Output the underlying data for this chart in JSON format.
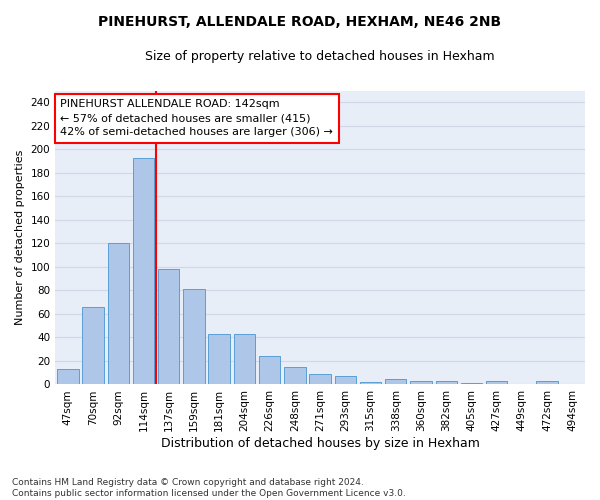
{
  "title1": "PINEHURST, ALLENDALE ROAD, HEXHAM, NE46 2NB",
  "title2": "Size of property relative to detached houses in Hexham",
  "xlabel": "Distribution of detached houses by size in Hexham",
  "ylabel": "Number of detached properties",
  "categories": [
    "47sqm",
    "70sqm",
    "92sqm",
    "114sqm",
    "137sqm",
    "159sqm",
    "181sqm",
    "204sqm",
    "226sqm",
    "248sqm",
    "271sqm",
    "293sqm",
    "315sqm",
    "338sqm",
    "360sqm",
    "382sqm",
    "405sqm",
    "427sqm",
    "449sqm",
    "472sqm",
    "494sqm"
  ],
  "values": [
    13,
    66,
    120,
    193,
    98,
    81,
    43,
    43,
    24,
    15,
    9,
    7,
    2,
    5,
    3,
    3,
    1,
    3,
    0,
    3,
    0
  ],
  "bar_color": "#aec6e8",
  "bar_edge_color": "#5a9fd4",
  "vline_color": "red",
  "vline_pos": 4.0,
  "annotation_text": "PINEHURST ALLENDALE ROAD: 142sqm\n← 57% of detached houses are smaller (415)\n42% of semi-detached houses are larger (306) →",
  "annotation_box_color": "white",
  "annotation_box_edge_color": "red",
  "ylim": [
    0,
    250
  ],
  "yticks": [
    0,
    20,
    40,
    60,
    80,
    100,
    120,
    140,
    160,
    180,
    200,
    220,
    240
  ],
  "grid_color": "#d0d8e8",
  "bg_color": "#e8eef8",
  "footnote": "Contains HM Land Registry data © Crown copyright and database right 2024.\nContains public sector information licensed under the Open Government Licence v3.0.",
  "title1_fontsize": 10,
  "title2_fontsize": 9,
  "xlabel_fontsize": 9,
  "ylabel_fontsize": 8,
  "tick_fontsize": 7.5,
  "annotation_fontsize": 8,
  "footnote_fontsize": 6.5
}
